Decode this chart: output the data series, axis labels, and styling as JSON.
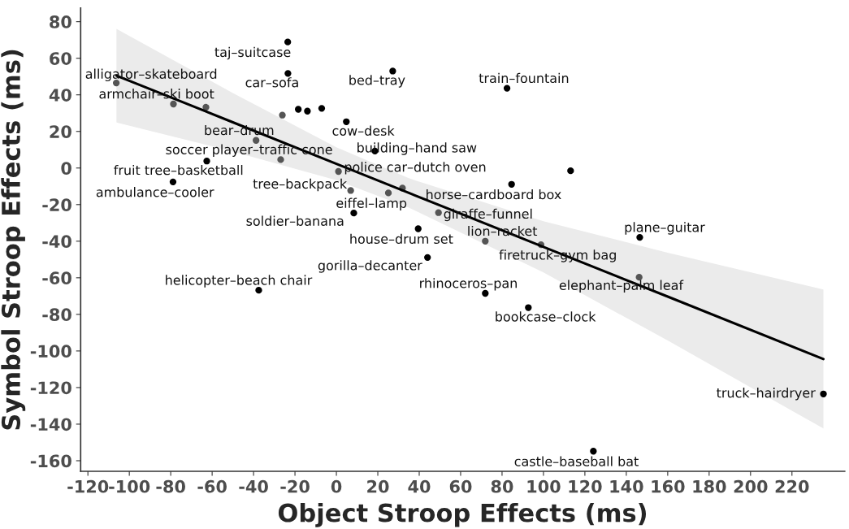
{
  "chart_data": {
    "type": "scatter",
    "xlabel": "Object Stroop Effects (ms)",
    "ylabel": "Symbol Stroop Effects (ms)",
    "xlim": [
      -123.5,
      245.5
    ],
    "ylim": [
      -165.8,
      87.5
    ],
    "xticks": [
      -120,
      -100,
      -80,
      -60,
      -40,
      -20,
      0,
      20,
      40,
      60,
      80,
      100,
      120,
      140,
      160,
      180,
      200,
      220
    ],
    "yticks": [
      -160,
      -140,
      -120,
      -100,
      -80,
      -60,
      -40,
      -20,
      0,
      20,
      40,
      60,
      80
    ],
    "grid": false,
    "series": [
      {
        "type": "line",
        "color": "#000000",
        "line_style": "solid",
        "marker": "none",
        "x": [
          -106.2,
          -50,
          0,
          35,
          100,
          160,
          235.2
        ],
        "values": [
          50.5,
          25.0,
          2.3,
          -13.6,
          -43.1,
          -70.3,
          -104.4
        ],
        "lower": [
          24.9,
          9.0,
          -6.7,
          -21.6,
          -57.1,
          -94.3,
          -142.4
        ],
        "upper": [
          76.1,
          41.0,
          11.3,
          -5.6,
          -29.1,
          -46.3,
          -66.4
        ]
      },
      {
        "type": "scatter",
        "marker": "circle",
        "x": [
          -106.3,
          -23.5,
          -23.4,
          27.2,
          82.4,
          -78.7,
          4.8,
          -38.8,
          18.6,
          -26.9,
          -62.6,
          113.1,
          1.0,
          -78.9,
          84.6,
          6.9,
          25.1,
          8.4,
          49.3,
          39.5,
          71.9,
          146.5,
          44.0,
          98.8,
          -37.5,
          146.2,
          71.9,
          92.7,
          235.2,
          124.1,
          -63.0,
          -26.1,
          -18.4,
          -14.0,
          -7.1,
          31.9
        ],
        "values": [
          46.5,
          68.9,
          51.7,
          53.0,
          43.6,
          35.0,
          25.3,
          15.1,
          9.3,
          4.6,
          3.8,
          -1.5,
          -1.9,
          -7.6,
          -8.9,
          -12.3,
          -13.6,
          -24.6,
          -24.4,
          -33.2,
          -40.0,
          -37.9,
          -48.9,
          -41.9,
          -66.8,
          -59.7,
          -68.5,
          -76.3,
          -123.5,
          -154.8,
          33.2,
          28.9,
          32.1,
          31.1,
          32.6,
          -11.0
        ],
        "colors": [
          "#555555",
          "#000000",
          "#000000",
          "#000000",
          "#000000",
          "#555555",
          "#000000",
          "#555555",
          "#000000",
          "#555555",
          "#000000",
          "#000000",
          "#555555",
          "#000000",
          "#000000",
          "#555555",
          "#555555",
          "#000000",
          "#555555",
          "#000000",
          "#555555",
          "#000000",
          "#000000",
          "#555555",
          "#000000",
          "#555555",
          "#000000",
          "#000000",
          "#000000",
          "#000000",
          "#555555",
          "#555555",
          "#000000",
          "#000000",
          "#000000",
          "#555555"
        ]
      }
    ],
    "annotations": [
      {
        "text": "alligator–skateboard",
        "x": -106.3,
        "y": 46.5
      },
      {
        "text": "taj–suitcase",
        "x": -23.5,
        "y": 68.9
      },
      {
        "text": "car–sofa",
        "x": -23.4,
        "y": 51.7
      },
      {
        "text": "bed–tray",
        "x": 27.2,
        "y": 53.0
      },
      {
        "text": "train–fountain",
        "x": 82.4,
        "y": 43.6
      },
      {
        "text": "armchair–ski boot",
        "x": -78.7,
        "y": 35.0
      },
      {
        "text": "cow–desk",
        "x": 4.8,
        "y": 25.3
      },
      {
        "text": "bear–drum",
        "x": -38.8,
        "y": 15.1
      },
      {
        "text": "building–hand saw",
        "x": 18.6,
        "y": 9.3
      },
      {
        "text": "soccer player–traffic cone",
        "x": -26.9,
        "y": 4.6
      },
      {
        "text": "fruit tree–basketball",
        "x": -62.6,
        "y": 3.8
      },
      {
        "text": "police car–dutch oven",
        "x": 1.0,
        "y": -1.9
      },
      {
        "text": "ambulance–cooler",
        "x": -78.9,
        "y": -7.6
      },
      {
        "text": "horse–cardboard box",
        "x": 84.6,
        "y": -8.9
      },
      {
        "text": "tree–backpack",
        "x": 6.9,
        "y": -12.3
      },
      {
        "text": "eiffel–lamp",
        "x": 25.1,
        "y": -13.6
      },
      {
        "text": "soldier–banana",
        "x": 8.4,
        "y": -24.6
      },
      {
        "text": "giraffe–funnel",
        "x": 49.3,
        "y": -24.4
      },
      {
        "text": "house–drum set",
        "x": 39.5,
        "y": -33.2
      },
      {
        "text": "lion–racket",
        "x": 71.9,
        "y": -40.0
      },
      {
        "text": "plane–guitar",
        "x": 146.5,
        "y": -37.9
      },
      {
        "text": "gorilla–decanter",
        "x": 44.0,
        "y": -48.9
      },
      {
        "text": "firetruck–gym bag",
        "x": 98.8,
        "y": -41.9
      },
      {
        "text": "helicopter–beach chair",
        "x": -37.5,
        "y": -66.8
      },
      {
        "text": "elephant–palm leaf",
        "x": 146.2,
        "y": -59.7
      },
      {
        "text": "rhinoceros–pan",
        "x": 71.9,
        "y": -68.5
      },
      {
        "text": "bookcase–clock",
        "x": 92.7,
        "y": -76.3
      },
      {
        "text": "truck–hairdryer",
        "x": 235.2,
        "y": -123.5
      },
      {
        "text": "castle–baseball bat",
        "x": 124.1,
        "y": -154.8
      }
    ]
  }
}
